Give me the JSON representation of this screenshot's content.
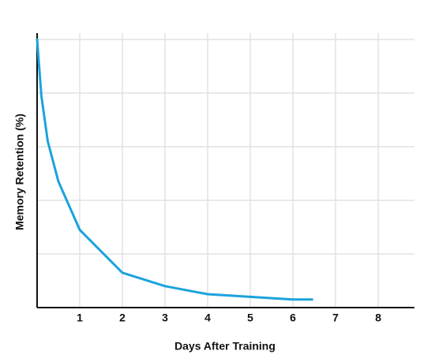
{
  "chart_data": {
    "type": "line",
    "x_label": "Days After Training",
    "y_label": "Memory Retention (%)",
    "x": [
      0,
      0.1,
      0.25,
      0.5,
      1,
      2,
      3,
      4,
      5,
      6,
      6.45
    ],
    "series": [
      {
        "color": "#1aa3dc",
        "values": [
          100,
          79,
          62,
          47,
          29,
          13,
          8,
          5,
          4,
          3,
          3
        ]
      }
    ],
    "xlim": [
      0,
      8.85
    ],
    "xticks": [
      1,
      2,
      3,
      4,
      5,
      6,
      7,
      8
    ],
    "ylim": [
      0,
      100
    ],
    "ygrid": [
      20,
      40,
      60,
      80,
      100
    ],
    "grid": true
  }
}
